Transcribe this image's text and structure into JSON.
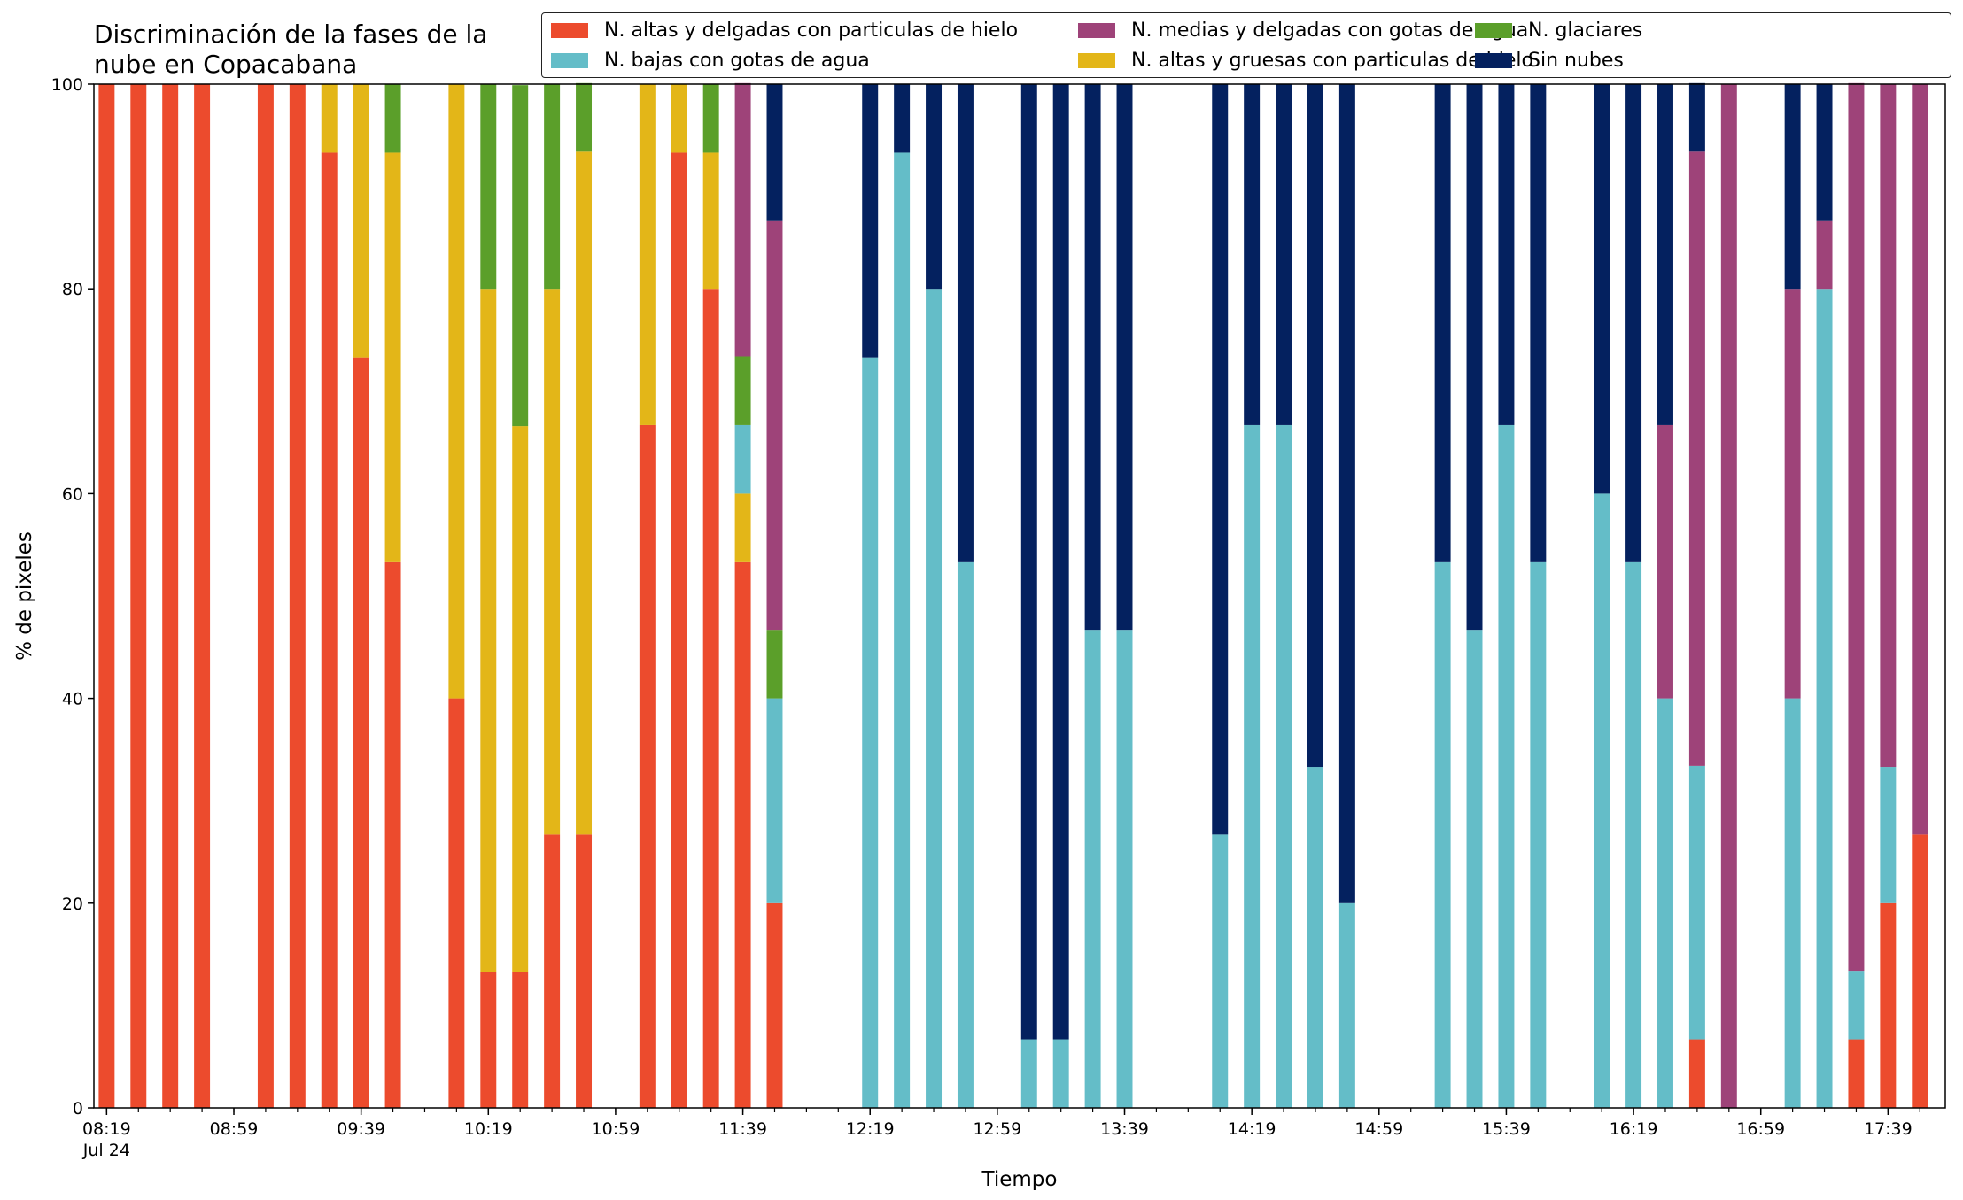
{
  "chart_data": {
    "type": "bar",
    "stacked": true,
    "title": "Discriminación de la fases de la\nnube en Copacabana",
    "xlabel": "Tiempo",
    "ylabel": "% de pixeles",
    "ylim": [
      0,
      100
    ],
    "yticks": [
      0,
      20,
      40,
      60,
      80,
      100
    ],
    "xticks": [
      {
        "label": "08:19",
        "sub": "Jul 24",
        "t": 499
      },
      {
        "label": "08:59",
        "t": 539
      },
      {
        "label": "09:39",
        "t": 579
      },
      {
        "label": "10:19",
        "t": 619
      },
      {
        "label": "10:59",
        "t": 659
      },
      {
        "label": "11:39",
        "t": 699
      },
      {
        "label": "12:19",
        "t": 739
      },
      {
        "label": "12:59",
        "t": 779
      },
      {
        "label": "13:39",
        "t": 819
      },
      {
        "label": "14:19",
        "t": 859
      },
      {
        "label": "14:59",
        "t": 899
      },
      {
        "label": "15:39",
        "t": 939
      },
      {
        "label": "16:19",
        "t": 979
      },
      {
        "label": "16:59",
        "t": 1019
      },
      {
        "label": "17:39",
        "t": 1059
      }
    ],
    "minor_tick_step": 10,
    "xlim": [
      495,
      1077
    ],
    "legend": "top-right, outside, three columns",
    "series": [
      {
        "name": "N. altas y delgadas con particulas de hielo",
        "color": "#ec4b2d"
      },
      {
        "name": "N. altas y gruesas con particulas de hielo",
        "color": "#e3b618"
      },
      {
        "name": "N. bajas con gotas de agua",
        "color": "#64bdc8"
      },
      {
        "name": "N. glaciares",
        "color": "#5b9f2a"
      },
      {
        "name": "N. medias y delgadas con gotas de agua",
        "color": "#9e4379"
      },
      {
        "name": "Sin nubes",
        "color": "#04215f"
      }
    ],
    "legend_order": [
      0,
      2,
      4,
      1,
      3,
      5
    ],
    "bars": [
      {
        "t": 499,
        "values": [
          100,
          0,
          0,
          0,
          0,
          0
        ]
      },
      {
        "t": 509,
        "values": [
          100,
          0,
          0,
          0,
          0,
          0
        ]
      },
      {
        "t": 519,
        "values": [
          100,
          0,
          0,
          0,
          0,
          0
        ]
      },
      {
        "t": 529,
        "values": [
          100,
          0,
          0,
          0,
          0,
          0
        ]
      },
      {
        "t": 549,
        "values": [
          100,
          0,
          0,
          0,
          0,
          0
        ]
      },
      {
        "t": 559,
        "values": [
          100,
          0,
          0,
          0,
          0,
          0
        ]
      },
      {
        "t": 569,
        "values": [
          93.3,
          6.7,
          0,
          0,
          0,
          0
        ]
      },
      {
        "t": 579,
        "values": [
          73.3,
          26.7,
          0,
          0,
          0,
          0
        ]
      },
      {
        "t": 589,
        "values": [
          53.3,
          40,
          0,
          6.7,
          0,
          0
        ]
      },
      {
        "t": 609,
        "values": [
          40,
          60,
          0,
          0,
          0,
          0
        ]
      },
      {
        "t": 619,
        "values": [
          13.3,
          66.7,
          0,
          20,
          0,
          0
        ]
      },
      {
        "t": 629,
        "values": [
          13.3,
          53.3,
          0,
          33.3,
          0,
          0
        ]
      },
      {
        "t": 639,
        "values": [
          26.7,
          53.3,
          0,
          20,
          0,
          0
        ]
      },
      {
        "t": 649,
        "values": [
          26.7,
          66.7,
          0,
          6.7,
          0,
          0
        ]
      },
      {
        "t": 669,
        "values": [
          66.7,
          33.3,
          0,
          0,
          0,
          0
        ]
      },
      {
        "t": 679,
        "values": [
          93.3,
          6.7,
          0,
          0,
          0,
          0
        ]
      },
      {
        "t": 689,
        "values": [
          80,
          13.3,
          0,
          6.7,
          0,
          0
        ]
      },
      {
        "t": 699,
        "values": [
          53.3,
          6.7,
          6.7,
          6.7,
          26.7,
          0
        ]
      },
      {
        "t": 709,
        "values": [
          20,
          0,
          20,
          6.7,
          40,
          13.3
        ]
      },
      {
        "t": 739,
        "values": [
          0,
          0,
          73.3,
          0,
          0,
          26.7
        ]
      },
      {
        "t": 749,
        "values": [
          0,
          0,
          93.3,
          0,
          0,
          6.7
        ]
      },
      {
        "t": 759,
        "values": [
          0,
          0,
          80,
          0,
          0,
          20
        ]
      },
      {
        "t": 769,
        "values": [
          0,
          0,
          53.3,
          0,
          0,
          46.7
        ]
      },
      {
        "t": 789,
        "values": [
          0,
          0,
          6.7,
          0,
          0,
          93.3
        ]
      },
      {
        "t": 799,
        "values": [
          0,
          0,
          6.7,
          0,
          0,
          93.3
        ]
      },
      {
        "t": 809,
        "values": [
          0,
          0,
          46.7,
          0,
          0,
          53.3
        ]
      },
      {
        "t": 819,
        "values": [
          0,
          0,
          46.7,
          0,
          0,
          53.3
        ]
      },
      {
        "t": 849,
        "values": [
          0,
          0,
          26.7,
          0,
          0,
          73.3
        ]
      },
      {
        "t": 859,
        "values": [
          0,
          0,
          66.7,
          0,
          0,
          33.3
        ]
      },
      {
        "t": 869,
        "values": [
          0,
          0,
          66.7,
          0,
          0,
          33.3
        ]
      },
      {
        "t": 879,
        "values": [
          0,
          0,
          33.3,
          0,
          0,
          66.7
        ]
      },
      {
        "t": 889,
        "values": [
          0,
          0,
          20,
          0,
          0,
          80
        ]
      },
      {
        "t": 919,
        "values": [
          0,
          0,
          53.3,
          0,
          0,
          46.7
        ]
      },
      {
        "t": 929,
        "values": [
          0,
          0,
          46.7,
          0,
          0,
          53.3
        ]
      },
      {
        "t": 939,
        "values": [
          0,
          0,
          66.7,
          0,
          0,
          33.3
        ]
      },
      {
        "t": 949,
        "values": [
          0,
          0,
          53.3,
          0,
          0,
          46.7
        ]
      },
      {
        "t": 969,
        "values": [
          0,
          0,
          60,
          0,
          0,
          40
        ]
      },
      {
        "t": 979,
        "values": [
          0,
          0,
          53.3,
          0,
          0,
          46.7
        ]
      },
      {
        "t": 989,
        "values": [
          0,
          0,
          40,
          0,
          26.7,
          33.3
        ]
      },
      {
        "t": 999,
        "values": [
          6.7,
          0,
          26.7,
          0,
          60,
          6.7
        ]
      },
      {
        "t": 1009,
        "values": [
          0,
          0,
          0,
          0,
          100,
          0
        ]
      },
      {
        "t": 1029,
        "values": [
          0,
          0,
          40,
          0,
          40,
          20
        ]
      },
      {
        "t": 1039,
        "values": [
          0,
          0,
          80,
          0,
          6.7,
          13.3
        ]
      },
      {
        "t": 1049,
        "values": [
          6.7,
          0,
          6.7,
          0,
          86.7,
          0
        ]
      },
      {
        "t": 1059,
        "values": [
          20,
          0,
          13.3,
          0,
          66.7,
          0
        ]
      },
      {
        "t": 1069,
        "values": [
          26.7,
          0,
          0,
          0,
          73.3,
          0
        ]
      }
    ]
  }
}
